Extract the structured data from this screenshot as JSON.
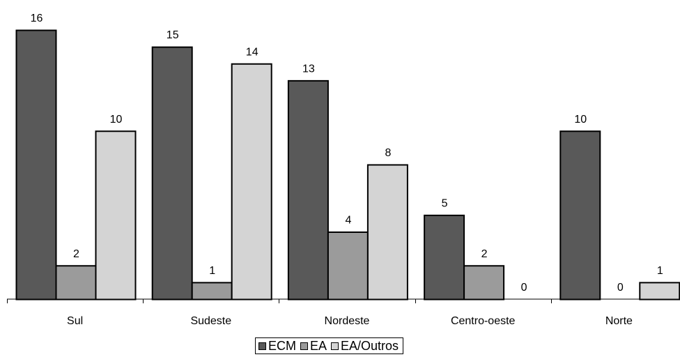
{
  "chart_data": {
    "type": "bar",
    "categories": [
      "Sul",
      "Sudeste",
      "Nordeste",
      "Centro-oeste",
      "Norte"
    ],
    "series": [
      {
        "name": "ECM",
        "values": [
          16,
          15,
          13,
          5,
          10
        ],
        "color": "#595959"
      },
      {
        "name": "EA",
        "values": [
          2,
          1,
          4,
          2,
          0
        ],
        "color": "#9b9b9b"
      },
      {
        "name": "EA/Outros",
        "values": [
          10,
          14,
          8,
          0,
          1
        ],
        "color": "#d4d4d4"
      }
    ],
    "ylim": [
      0,
      16
    ],
    "grid": false,
    "legend_position": "bottom",
    "data_labels": true
  }
}
